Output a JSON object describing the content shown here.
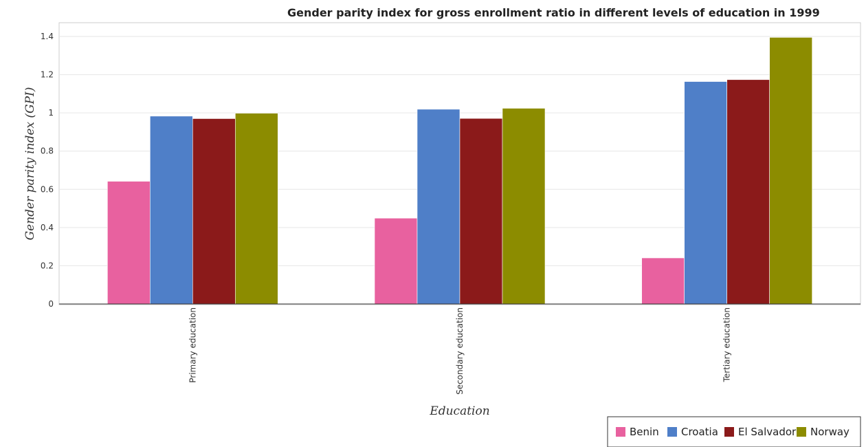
{
  "chart_data": {
    "type": "bar",
    "title": "Gender parity index for gross enrollment ratio in different levels of education in 1999",
    "xlabel": "Education",
    "ylabel": "Gender parity index (GPI)",
    "categories": [
      "Primary education",
      "Secondary education",
      "Tertiary education"
    ],
    "ylim": [
      0,
      1.4
    ],
    "yticks": [
      "0",
      "0.2",
      "0.4",
      "0.6",
      "0.8",
      "1",
      "1.2",
      "1.4"
    ],
    "legend_position": "bottom-right",
    "series": [
      {
        "name": "Benin",
        "color": "#e8619f",
        "values": [
          0.642,
          0.449,
          0.241
        ]
      },
      {
        "name": "Croatia",
        "color": "#4f7fc8",
        "values": [
          0.983,
          1.019,
          1.164
        ]
      },
      {
        "name": "El Salvador",
        "color": "#8b1a1a",
        "values": [
          0.97,
          0.971,
          1.174
        ]
      },
      {
        "name": "Norway",
        "color": "#8c8c00",
        "values": [
          0.998,
          1.024,
          1.395
        ]
      }
    ]
  }
}
